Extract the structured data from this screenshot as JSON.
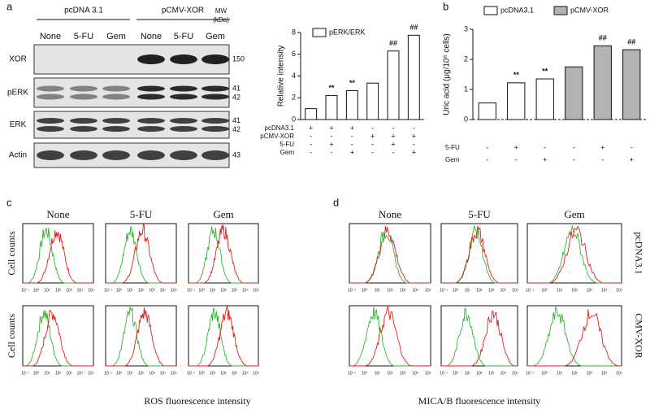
{
  "panel_a": {
    "label": "a",
    "groups": [
      "pcDNA 3.1",
      "pCMV-XOR"
    ],
    "mw_header": [
      "MW",
      "(kDa)"
    ],
    "lanes": [
      "None",
      "5-FU",
      "Gem",
      "None",
      "5-FU",
      "Gem"
    ],
    "blots": [
      {
        "name": "XOR",
        "mw": [
          "150"
        ]
      },
      {
        "name": "pERK",
        "mw": [
          "41",
          "42"
        ]
      },
      {
        "name": "ERK",
        "mw": [
          "41",
          "42"
        ]
      },
      {
        "name": "Actin",
        "mw": [
          "43"
        ]
      }
    ]
  },
  "panel_b": {
    "label": "b"
  },
  "chart_data": [
    {
      "type": "bar",
      "ylabel": "Relative intensity",
      "series": [
        {
          "name": "pERK/ERK",
          "color": "#ffffff",
          "values": [
            1,
            2.2,
            2.65,
            3.35,
            6.3,
            7.75
          ]
        }
      ],
      "ylim": [
        0,
        8
      ],
      "yticks": [
        0,
        2,
        4,
        6,
        8
      ],
      "annotations": [
        null,
        "**",
        "**",
        null,
        "##",
        "##"
      ],
      "condition_rows": [
        {
          "label": "pcDNA3.1",
          "marks": [
            "+",
            "+",
            "+",
            "-",
            "-",
            "-"
          ]
        },
        {
          "label": "pCMV-XOR",
          "marks": [
            "-",
            "-",
            "-",
            "+",
            "+",
            "+"
          ]
        },
        {
          "label": "5-FU",
          "marks": [
            "-",
            "+",
            "-",
            "-",
            "+",
            "-"
          ]
        },
        {
          "label": "Gem",
          "marks": [
            "-",
            "-",
            "+",
            "-",
            "-",
            "+"
          ]
        }
      ]
    },
    {
      "type": "bar",
      "ylabel": "Uric acid (μg/10⁶ cells)",
      "series": [
        {
          "name": "pcDNA3.1",
          "color": "#ffffff",
          "values": [
            0.55,
            1.22,
            1.35,
            null,
            null,
            null
          ]
        },
        {
          "name": "pCMV-XOR",
          "color": "#b3b3b3",
          "values": [
            null,
            null,
            null,
            1.75,
            2.45,
            2.32
          ]
        }
      ],
      "ylim": [
        0,
        3
      ],
      "yticks": [
        0,
        1,
        2,
        3
      ],
      "annotations": [
        null,
        "**",
        "**",
        null,
        "##",
        "##"
      ],
      "condition_rows": [
        {
          "label": "5-FU",
          "marks": [
            "-",
            "+",
            "-",
            "-",
            "+",
            "-"
          ]
        },
        {
          "label": "Gem",
          "marks": [
            "-",
            "-",
            "+",
            "-",
            "-",
            "+"
          ]
        }
      ]
    }
  ],
  "panel_c": {
    "label": "c",
    "columns": [
      "None",
      "5-FU",
      "Gem"
    ],
    "ylabel": "Cell counts",
    "xlabel": "ROS fluorescence intensity"
  },
  "panel_d": {
    "label": "d",
    "columns": [
      "None",
      "5-FU",
      "Gem"
    ],
    "rows": [
      "pcDNA3.1",
      "CMV-XOR"
    ],
    "xlabel": "MICA/B fluorescence  intensity"
  },
  "flow_xticks": [
    "10⁻¹",
    "10⁰",
    "10¹",
    "10²",
    "10³",
    "10⁴",
    "10⁵"
  ]
}
